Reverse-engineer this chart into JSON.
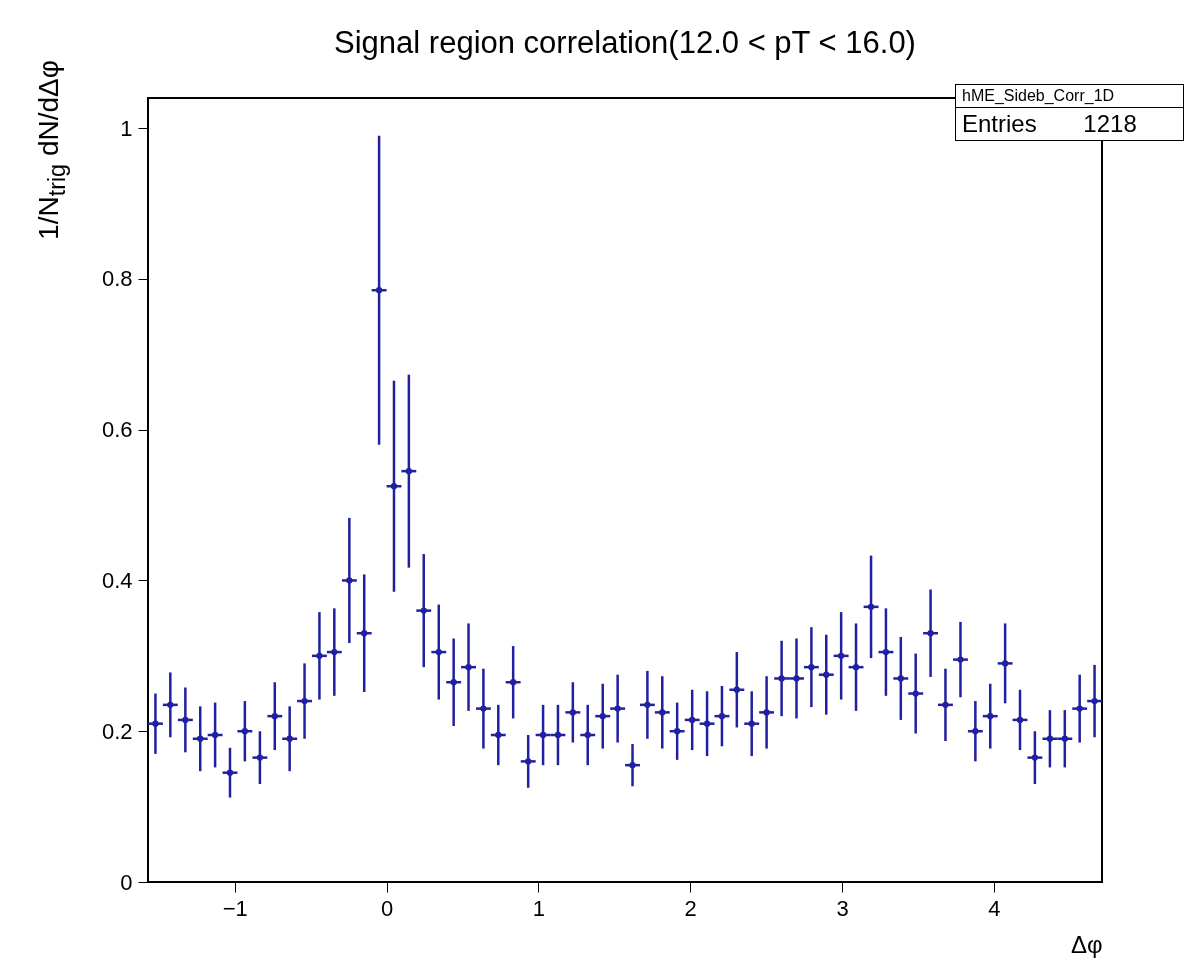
{
  "chart_data": {
    "type": "scatter",
    "title": "Signal region correlation(12.0 < pT < 16.0)",
    "xlabel": "Δφ",
    "ylabel": "1/N$_{trig}$ dN/dΔφ",
    "annotations": [
      "hME_Sideb_Corr_1D",
      "Entries 1218"
    ],
    "x": [
      -1.522,
      -1.424,
      -1.325,
      -1.227,
      -1.129,
      -1.031,
      -0.933,
      -0.834,
      -0.736,
      -0.638,
      -0.54,
      -0.442,
      -0.344,
      -0.245,
      -0.147,
      -0.049,
      0.049,
      0.147,
      0.245,
      0.344,
      0.442,
      0.54,
      0.638,
      0.736,
      0.834,
      0.933,
      1.031,
      1.129,
      1.227,
      1.325,
      1.424,
      1.522,
      1.62,
      1.718,
      1.816,
      1.914,
      2.013,
      2.111,
      2.209,
      2.307,
      2.405,
      2.503,
      2.602,
      2.7,
      2.798,
      2.896,
      2.994,
      3.092,
      3.191,
      3.289,
      3.387,
      3.485,
      3.583,
      3.681,
      3.78,
      3.878,
      3.976,
      4.074,
      4.172,
      4.27,
      4.369,
      4.467,
      4.565,
      4.663
    ],
    "series": [
      {
        "color": "#2020a0",
        "values": [
          0.21,
          0.235,
          0.215,
          0.19,
          0.195,
          0.145,
          0.2,
          0.165,
          0.22,
          0.19,
          0.24,
          0.3,
          0.305,
          0.4,
          0.33,
          0.785,
          0.525,
          0.545,
          0.36,
          0.305,
          0.265,
          0.285,
          0.23,
          0.195,
          0.265,
          0.16,
          0.195,
          0.195,
          0.225,
          0.195,
          0.22,
          0.23,
          0.155,
          0.235,
          0.225,
          0.2,
          0.215,
          0.21,
          0.22,
          0.255,
          0.21,
          0.225,
          0.27,
          0.27,
          0.285,
          0.275,
          0.3,
          0.285,
          0.365,
          0.305,
          0.27,
          0.25,
          0.33,
          0.235,
          0.295,
          0.2,
          0.22,
          0.29,
          0.215,
          0.165,
          0.19,
          0.19,
          0.23,
          0.24
        ],
        "errors": [
          0.04,
          0.043,
          0.043,
          0.043,
          0.043,
          0.033,
          0.04,
          0.035,
          0.045,
          0.043,
          0.05,
          0.058,
          0.058,
          0.083,
          0.078,
          0.205,
          0.14,
          0.128,
          0.075,
          0.063,
          0.058,
          0.058,
          0.053,
          0.04,
          0.048,
          0.035,
          0.04,
          0.04,
          0.04,
          0.04,
          0.043,
          0.045,
          0.028,
          0.045,
          0.048,
          0.038,
          0.04,
          0.043,
          0.04,
          0.05,
          0.043,
          0.048,
          0.05,
          0.053,
          0.053,
          0.053,
          0.058,
          0.058,
          0.068,
          0.058,
          0.055,
          0.053,
          0.058,
          0.048,
          0.05,
          0.04,
          0.043,
          0.053,
          0.04,
          0.035,
          0.038,
          0.038,
          0.045,
          0.048
        ],
        "xerrors": [
          0.049,
          0.049,
          0.049,
          0.049,
          0.049,
          0.049,
          0.049,
          0.049,
          0.049,
          0.049,
          0.049,
          0.049,
          0.049,
          0.049,
          0.049,
          0.049,
          0.049,
          0.049,
          0.049,
          0.049,
          0.049,
          0.049,
          0.049,
          0.049,
          0.049,
          0.049,
          0.049,
          0.049,
          0.049,
          0.049,
          0.049,
          0.049,
          0.049,
          0.049,
          0.049,
          0.049,
          0.049,
          0.049,
          0.049,
          0.049,
          0.049,
          0.049,
          0.049,
          0.049,
          0.049,
          0.049,
          0.049,
          0.049,
          0.049,
          0.049,
          0.049,
          0.049,
          0.049,
          0.049,
          0.049,
          0.049,
          0.049,
          0.049,
          0.049,
          0.049,
          0.049,
          0.049,
          0.049,
          0.049
        ]
      }
    ],
    "xlim": [
      -1.571,
      4.712
    ],
    "xticks": [
      -1,
      0,
      1,
      2,
      3,
      4
    ],
    "ylim": [
      0,
      1.04
    ],
    "yticks": [
      0,
      0.2,
      0.4,
      0.6,
      0.8,
      1
    ]
  }
}
